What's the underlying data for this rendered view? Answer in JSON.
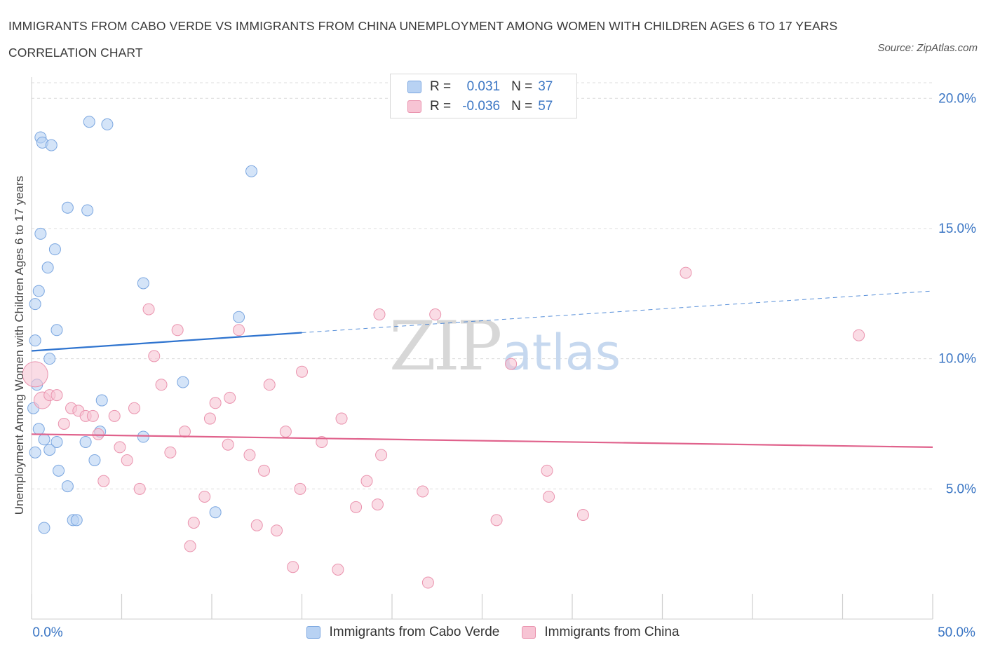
{
  "title": "IMMIGRANTS FROM CABO VERDE VS IMMIGRANTS FROM CHINA UNEMPLOYMENT AMONG WOMEN WITH CHILDREN AGES 6 TO 17 YEARS CORRELATION CHART",
  "source": "Source: ZipAtlas.com",
  "watermark": {
    "zip": "ZIP",
    "atlas": "atlas"
  },
  "colors": {
    "blue_fill": "#b8d2f3",
    "blue_stroke": "#7aa6e0",
    "blue_line": "#2f74cf",
    "pink_fill": "#f7c4d4",
    "pink_stroke": "#ea93ae",
    "pink_line": "#e0628c",
    "tick_label": "#3b76c4",
    "grid": "#dcdcdc"
  },
  "legend": {
    "rows": [
      {
        "r_label": "R =",
        "r_value": "0.031",
        "n_label": "N =",
        "n_value": "37"
      },
      {
        "r_label": "R =",
        "r_value": "-0.036",
        "n_label": "N =",
        "n_value": "57"
      }
    ]
  },
  "bottom_legend": [
    "Immigrants from Cabo Verde",
    "Immigrants from China"
  ],
  "chart_data": {
    "type": "scatter",
    "title": "IMMIGRANTS FROM CABO VERDE VS IMMIGRANTS FROM CHINA UNEMPLOYMENT AMONG WOMEN WITH CHILDREN AGES 6 TO 17 YEARS CORRELATION CHART",
    "xlabel": "",
    "ylabel": "Unemployment Among Women with Children Ages 6 to 17 years",
    "xlim": [
      0,
      50
    ],
    "ylim": [
      0,
      20
    ],
    "x_tick_labels": [
      {
        "value": 0,
        "label": "0.0%"
      },
      {
        "value": 50,
        "label": "50.0%"
      }
    ],
    "y_tick_labels": [
      {
        "value": 5,
        "label": "5.0%"
      },
      {
        "value": 10,
        "label": "10.0%"
      },
      {
        "value": 15,
        "label": "15.0%"
      },
      {
        "value": 20,
        "label": "20.0%"
      }
    ],
    "series": [
      {
        "name": "Immigrants from Cabo Verde",
        "color": "blue",
        "trend": {
          "x0": 0,
          "y0": 10.3,
          "x1": 15,
          "y1": 11.0,
          "dash_x1": 50,
          "dash_y1": 12.6
        },
        "points": [
          [
            0.5,
            18.5
          ],
          [
            0.6,
            18.3
          ],
          [
            1.1,
            18.2
          ],
          [
            3.2,
            19.1
          ],
          [
            4.2,
            19.0
          ],
          [
            12.2,
            17.2
          ],
          [
            2.0,
            15.8
          ],
          [
            3.1,
            15.7
          ],
          [
            0.5,
            14.8
          ],
          [
            1.3,
            14.2
          ],
          [
            0.9,
            13.5
          ],
          [
            6.2,
            12.9
          ],
          [
            0.4,
            12.6
          ],
          [
            0.2,
            12.1
          ],
          [
            11.5,
            11.6
          ],
          [
            1.4,
            11.1
          ],
          [
            0.2,
            10.7
          ],
          [
            1.0,
            10.0
          ],
          [
            0.3,
            9.0
          ],
          [
            8.4,
            9.1
          ],
          [
            3.9,
            8.4
          ],
          [
            0.1,
            8.1
          ],
          [
            3.8,
            7.2
          ],
          [
            0.4,
            7.3
          ],
          [
            0.7,
            6.9
          ],
          [
            6.2,
            7.0
          ],
          [
            3.0,
            6.8
          ],
          [
            1.4,
            6.8
          ],
          [
            0.2,
            6.4
          ],
          [
            1.0,
            6.5
          ],
          [
            3.5,
            6.1
          ],
          [
            1.5,
            5.7
          ],
          [
            2.0,
            5.1
          ],
          [
            10.2,
            4.1
          ],
          [
            2.3,
            3.8
          ],
          [
            2.5,
            3.8
          ],
          [
            0.7,
            3.5
          ]
        ]
      },
      {
        "name": "Immigrants from China",
        "color": "pink",
        "trend": {
          "x0": 0,
          "y0": 7.1,
          "x1": 50,
          "y1": 6.6
        },
        "points": [
          [
            0.2,
            9.4
          ],
          [
            0.6,
            8.4
          ],
          [
            1.0,
            8.6
          ],
          [
            1.4,
            8.6
          ],
          [
            1.8,
            7.5
          ],
          [
            2.2,
            8.1
          ],
          [
            2.6,
            8.0
          ],
          [
            3.0,
            7.8
          ],
          [
            3.4,
            7.8
          ],
          [
            3.7,
            7.1
          ],
          [
            4.0,
            5.3
          ],
          [
            4.6,
            7.8
          ],
          [
            4.9,
            6.6
          ],
          [
            5.3,
            6.1
          ],
          [
            5.7,
            8.1
          ],
          [
            6.0,
            5.0
          ],
          [
            6.5,
            11.9
          ],
          [
            6.8,
            10.1
          ],
          [
            7.2,
            9.0
          ],
          [
            7.7,
            6.4
          ],
          [
            8.1,
            11.1
          ],
          [
            8.5,
            7.2
          ],
          [
            8.8,
            2.8
          ],
          [
            9.0,
            3.7
          ],
          [
            9.6,
            4.7
          ],
          [
            9.9,
            7.7
          ],
          [
            10.2,
            8.3
          ],
          [
            10.9,
            6.7
          ],
          [
            11.0,
            8.5
          ],
          [
            11.5,
            11.1
          ],
          [
            12.1,
            6.3
          ],
          [
            12.5,
            3.6
          ],
          [
            12.9,
            5.7
          ],
          [
            13.2,
            9.0
          ],
          [
            13.6,
            3.4
          ],
          [
            14.1,
            7.2
          ],
          [
            14.5,
            2.0
          ],
          [
            14.9,
            5.0
          ],
          [
            15.0,
            9.5
          ],
          [
            16.1,
            6.8
          ],
          [
            17.0,
            1.9
          ],
          [
            17.2,
            7.7
          ],
          [
            18.0,
            4.3
          ],
          [
            18.6,
            5.3
          ],
          [
            19.2,
            4.4
          ],
          [
            19.4,
            6.3
          ],
          [
            19.3,
            11.7
          ],
          [
            21.7,
            4.9
          ],
          [
            22.0,
            1.4
          ],
          [
            22.4,
            11.7
          ],
          [
            25.8,
            3.8
          ],
          [
            26.6,
            9.8
          ],
          [
            28.6,
            5.7
          ],
          [
            28.7,
            4.7
          ],
          [
            30.6,
            4.0
          ],
          [
            36.3,
            13.3
          ],
          [
            45.9,
            10.9
          ]
        ]
      }
    ],
    "grid": true,
    "legend_position": "top-center"
  }
}
